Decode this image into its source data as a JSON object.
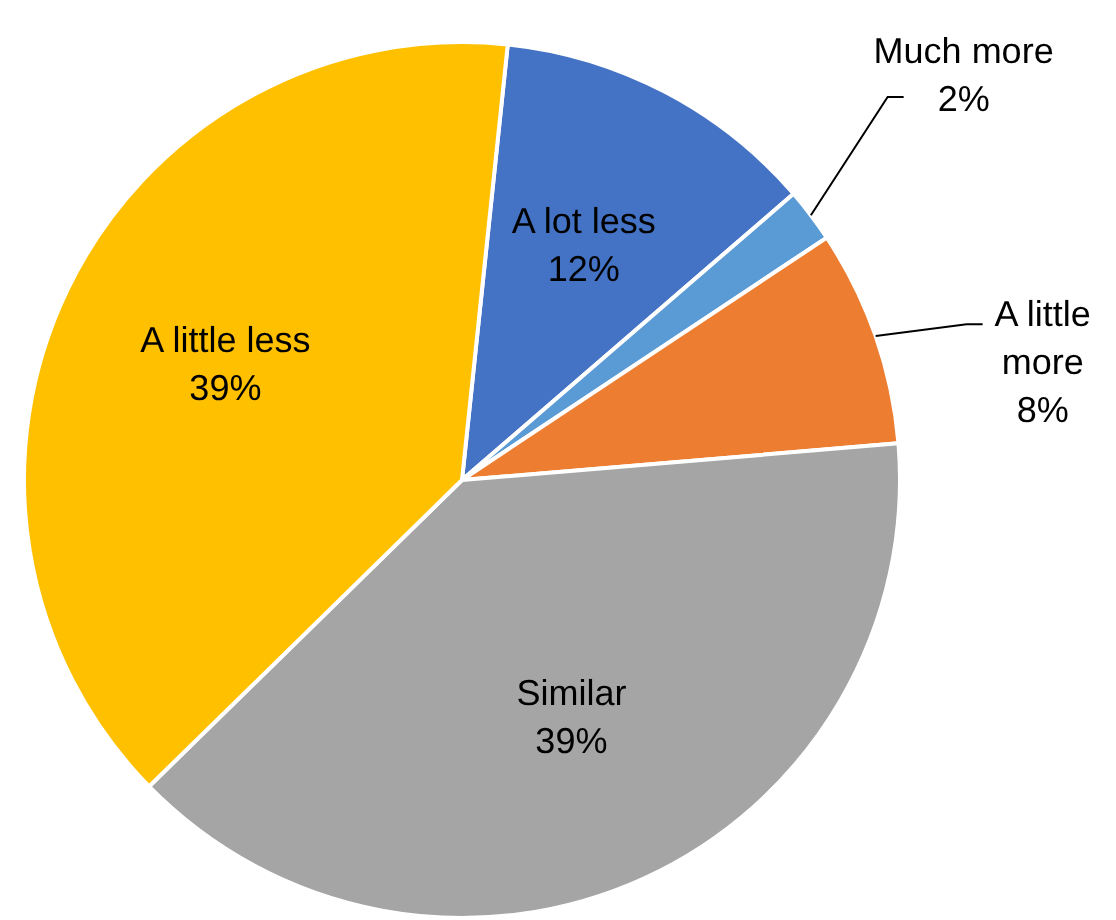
{
  "chart_data": {
    "type": "pie",
    "categories": [
      "A lot less",
      "Much more",
      "A little more",
      "Similar",
      "A little less"
    ],
    "values": [
      12,
      2,
      8,
      39,
      39
    ],
    "colors": [
      "#4472c4",
      "#5b9bd5",
      "#ed7d31",
      "#a5a5a5",
      "#ffc000"
    ],
    "value_labels": [
      "12%",
      "2%",
      "8%",
      "39%",
      "39%"
    ],
    "legend": false
  }
}
